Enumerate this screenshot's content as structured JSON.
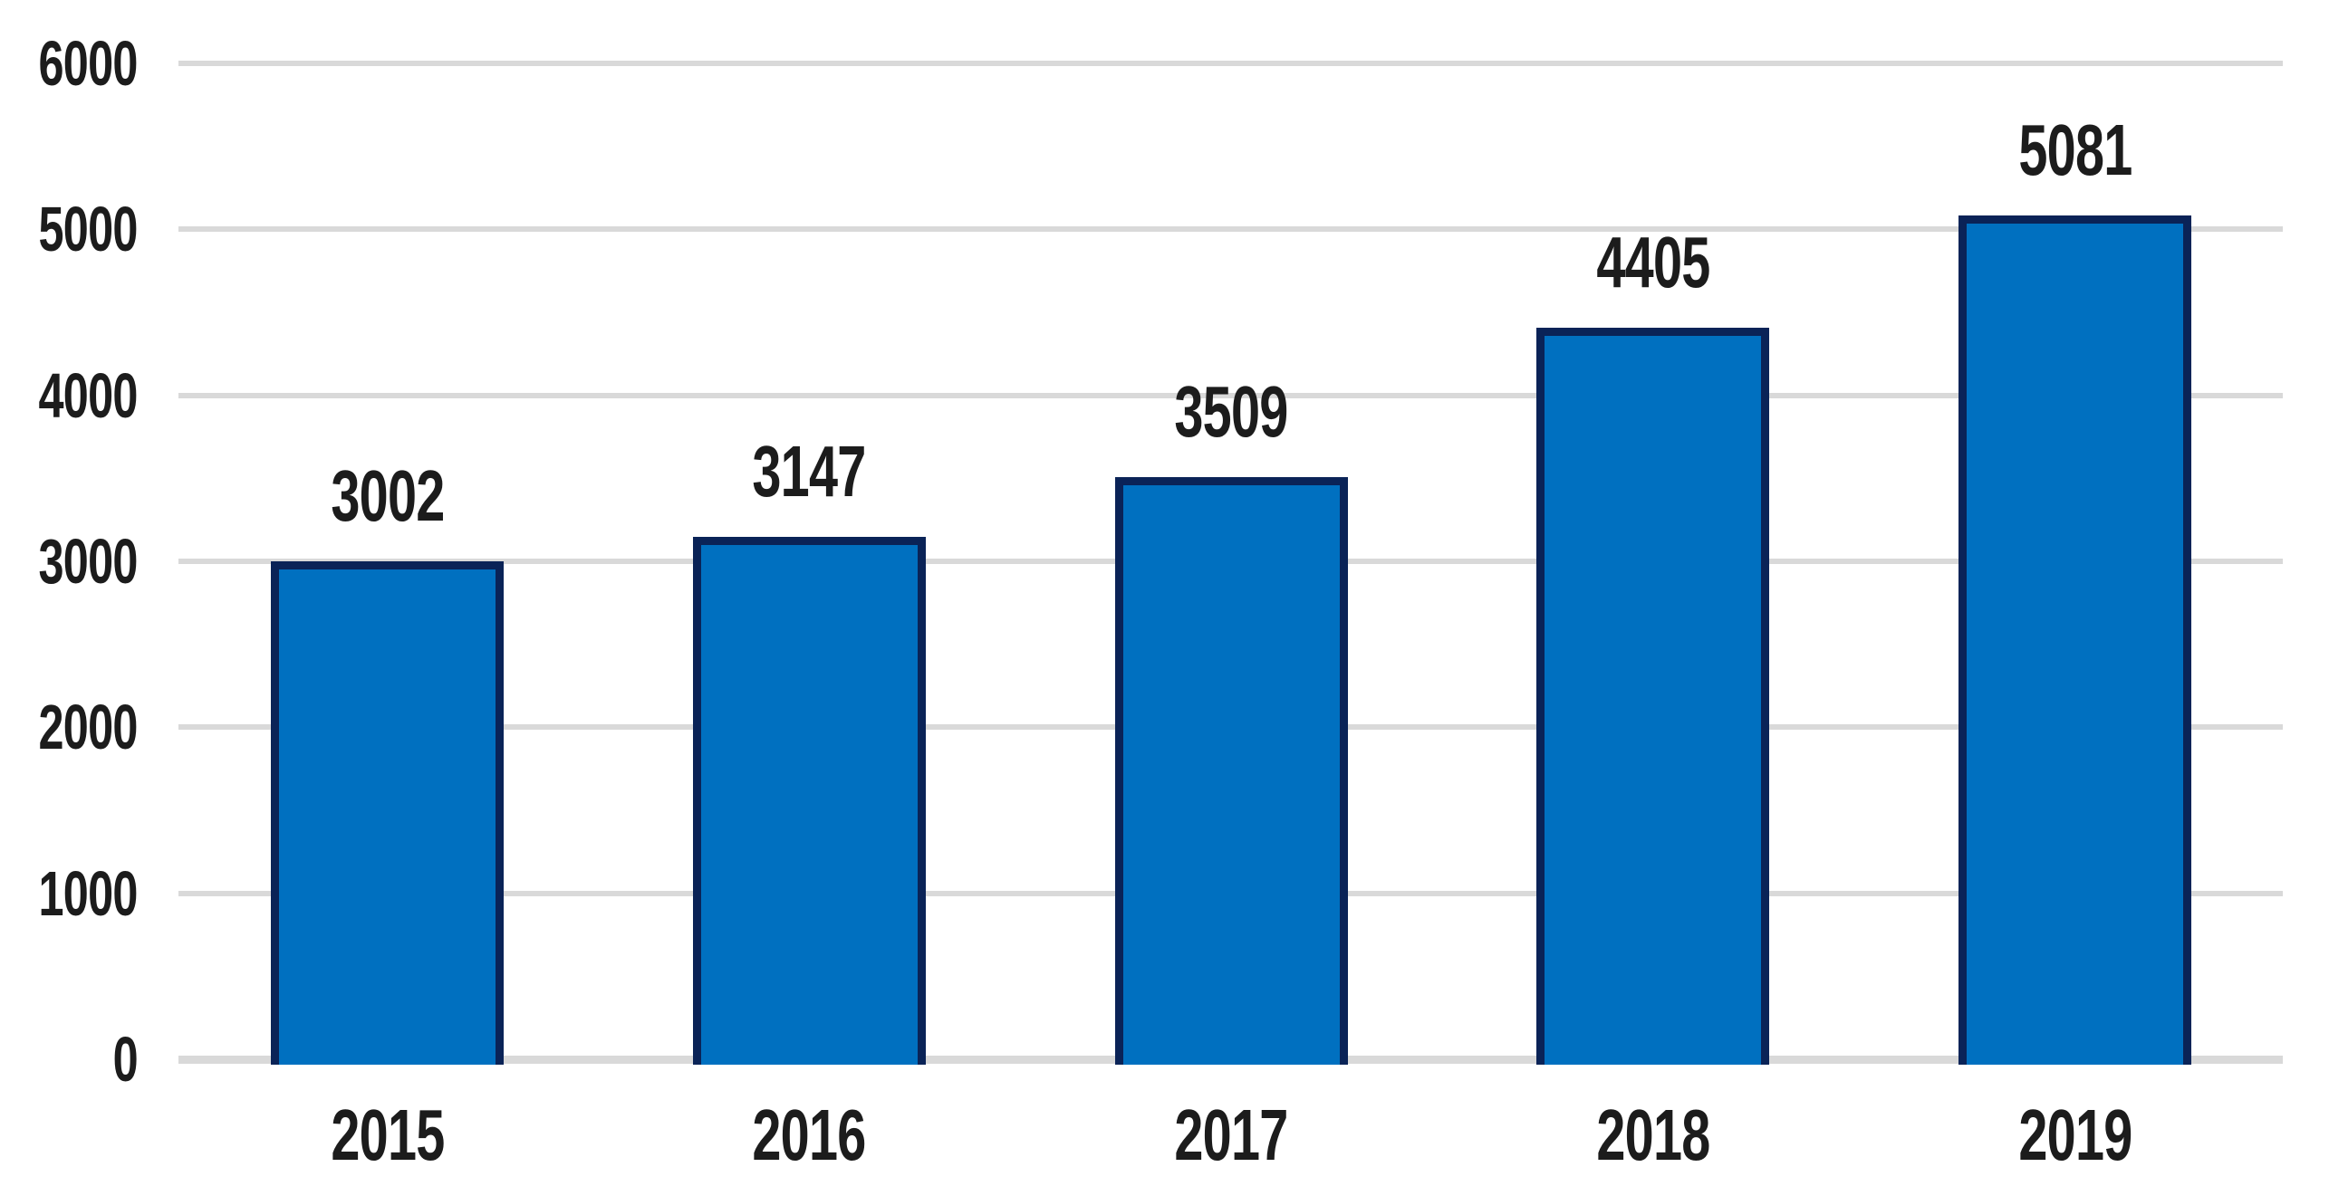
{
  "chart_data": {
    "type": "bar",
    "title": "",
    "xlabel": "",
    "ylabel": "",
    "categories": [
      "2015",
      "2016",
      "2017",
      "2018",
      "2019"
    ],
    "values": [
      3002,
      3147,
      3509,
      4405,
      5081
    ],
    "data_labels": [
      "3002",
      "3147",
      "3509",
      "4405",
      "5081"
    ],
    "yticks": [
      0,
      1000,
      2000,
      3000,
      4000,
      5000,
      6000
    ],
    "ytick_labels": [
      "0",
      "1000",
      "2000",
      "3000",
      "4000",
      "5000",
      "6000"
    ],
    "ylim": [
      0,
      6000
    ],
    "grid": "horizontal",
    "legend": "none",
    "colors": {
      "bar_fill": "#0070c0",
      "bar_border": "#0a2357",
      "gridline": "#d9d9d9",
      "text": "#1c1c1c",
      "background": "#ffffff"
    }
  }
}
